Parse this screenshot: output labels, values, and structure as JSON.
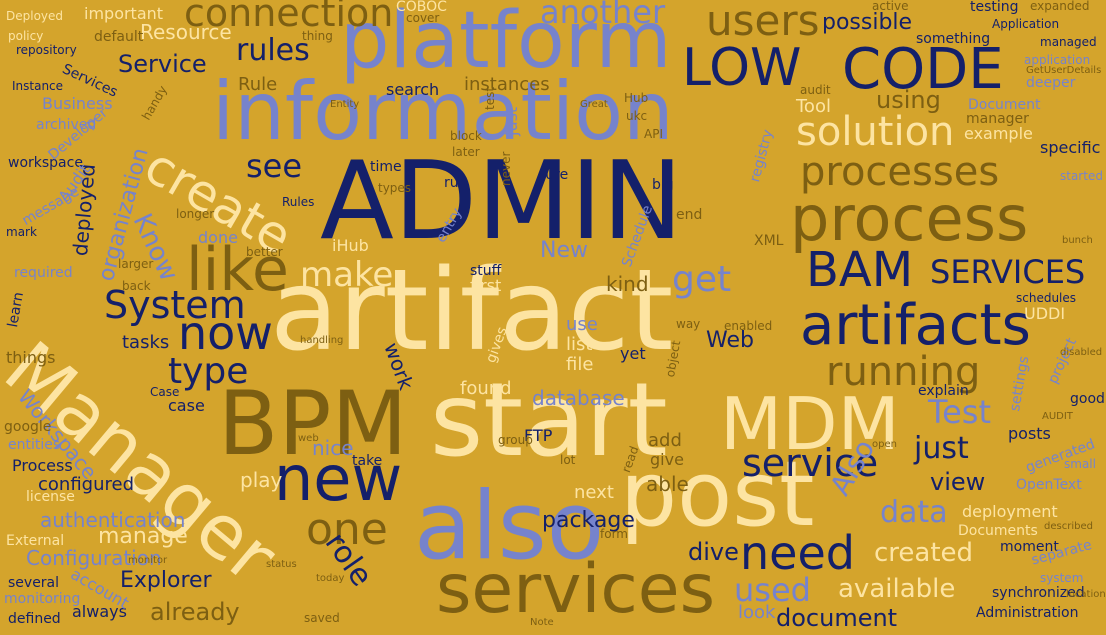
{
  "palette": {
    "background": "#d4a42c",
    "navy": "#14206a",
    "periwinkle": "#7683cc",
    "cream": "#fde4a2",
    "olive": "#7d5f12"
  },
  "words": [
    {
      "text": "artifact",
      "color": "cream"
    },
    {
      "text": "ADMIN",
      "color": "navy"
    },
    {
      "text": "information",
      "color": "periwinkle"
    },
    {
      "text": "platform",
      "color": "periwinkle"
    },
    {
      "text": "Manager",
      "color": "cream"
    },
    {
      "text": "start",
      "color": "cream"
    },
    {
      "text": "BPM",
      "color": "olive"
    },
    {
      "text": "also",
      "color": "periwinkle"
    },
    {
      "text": "post",
      "color": "cream"
    },
    {
      "text": "services",
      "color": "olive"
    },
    {
      "text": "process",
      "color": "olive"
    },
    {
      "text": "MDM",
      "color": "cream"
    },
    {
      "text": "new",
      "color": "navy"
    },
    {
      "text": "artifacts",
      "color": "navy"
    },
    {
      "text": "LOW",
      "color": "navy"
    },
    {
      "text": "CODE",
      "color": "navy"
    },
    {
      "text": "like",
      "color": "olive"
    },
    {
      "text": "create",
      "color": "cream"
    },
    {
      "text": "BAM",
      "color": "navy"
    },
    {
      "text": "processes",
      "color": "olive"
    },
    {
      "text": "users",
      "color": "olive"
    },
    {
      "text": "solution",
      "color": "cream"
    },
    {
      "text": "need",
      "color": "navy"
    },
    {
      "text": "service",
      "color": "navy"
    },
    {
      "text": "one",
      "color": "olive"
    },
    {
      "text": "now",
      "color": "navy"
    },
    {
      "text": "running",
      "color": "olive"
    },
    {
      "text": "connection",
      "color": "olive"
    },
    {
      "text": "another",
      "color": "periwinkle"
    },
    {
      "text": "SERVICES",
      "color": "navy"
    },
    {
      "text": "System",
      "color": "navy"
    },
    {
      "text": "type",
      "color": "navy"
    },
    {
      "text": "make",
      "color": "cream"
    },
    {
      "text": "get",
      "color": "periwinkle"
    },
    {
      "text": "rules",
      "color": "navy"
    },
    {
      "text": "Service",
      "color": "navy"
    },
    {
      "text": "see",
      "color": "navy"
    },
    {
      "text": "Know",
      "color": "periwinkle"
    },
    {
      "text": "Test",
      "color": "periwinkle"
    },
    {
      "text": "just",
      "color": "navy"
    },
    {
      "text": "Also",
      "color": "periwinkle"
    },
    {
      "text": "used",
      "color": "periwinkle"
    },
    {
      "text": "data",
      "color": "periwinkle"
    },
    {
      "text": "role",
      "color": "navy"
    },
    {
      "text": "view",
      "color": "navy"
    },
    {
      "text": "available",
      "color": "cream"
    },
    {
      "text": "created",
      "color": "cream"
    },
    {
      "text": "document",
      "color": "navy"
    },
    {
      "text": "possible",
      "color": "navy"
    },
    {
      "text": "using",
      "color": "olive"
    },
    {
      "text": "Resource",
      "color": "cream"
    },
    {
      "text": "instances",
      "color": "olive"
    },
    {
      "text": "database",
      "color": "periwinkle"
    },
    {
      "text": "package",
      "color": "navy"
    },
    {
      "text": "dive",
      "color": "navy"
    },
    {
      "text": "already",
      "color": "olive"
    },
    {
      "text": "Explorer",
      "color": "navy"
    },
    {
      "text": "manage",
      "color": "cream"
    },
    {
      "text": "Configuration",
      "color": "periwinkle"
    },
    {
      "text": "authentication",
      "color": "periwinkle"
    },
    {
      "text": "organization",
      "color": "periwinkle"
    },
    {
      "text": "Workspace",
      "color": "periwinkle"
    },
    {
      "text": "deployed",
      "color": "navy"
    },
    {
      "text": "tasks",
      "color": "navy"
    },
    {
      "text": "Web",
      "color": "navy"
    },
    {
      "text": "work",
      "color": "navy"
    },
    {
      "text": "New",
      "color": "periwinkle"
    },
    {
      "text": "kind",
      "color": "olive"
    },
    {
      "text": "found",
      "color": "cream"
    },
    {
      "text": "nice",
      "color": "periwinkle"
    },
    {
      "text": "play",
      "color": "cream"
    },
    {
      "text": "able",
      "color": "olive"
    },
    {
      "text": "next",
      "color": "cream"
    },
    {
      "text": "add",
      "color": "olive"
    },
    {
      "text": "give",
      "color": "olive"
    },
    {
      "text": "case",
      "color": "navy"
    },
    {
      "text": "search",
      "color": "navy"
    },
    {
      "text": "Tool",
      "color": "cream"
    },
    {
      "text": "Rule",
      "color": "olive"
    },
    {
      "text": "example",
      "color": "cream"
    },
    {
      "text": "posts",
      "color": "navy"
    },
    {
      "text": "deployment",
      "color": "cream"
    },
    {
      "text": "Documents",
      "color": "cream"
    },
    {
      "text": "moment",
      "color": "navy"
    },
    {
      "text": "synchronized",
      "color": "navy"
    },
    {
      "text": "Administration",
      "color": "navy"
    },
    {
      "text": "look",
      "color": "periwinkle"
    },
    {
      "text": "always",
      "color": "navy"
    },
    {
      "text": "defined",
      "color": "navy"
    },
    {
      "text": "account",
      "color": "periwinkle"
    },
    {
      "text": "several",
      "color": "navy"
    },
    {
      "text": "External",
      "color": "cream"
    },
    {
      "text": "license",
      "color": "cream"
    },
    {
      "text": "configured",
      "color": "navy"
    },
    {
      "text": "Process",
      "color": "navy"
    },
    {
      "text": "entities",
      "color": "periwinkle"
    },
    {
      "text": "google",
      "color": "olive"
    },
    {
      "text": "things",
      "color": "olive"
    },
    {
      "text": "learn",
      "color": "navy"
    },
    {
      "text": "required",
      "color": "periwinkle"
    },
    {
      "text": "mark",
      "color": "navy"
    },
    {
      "text": "workspace",
      "color": "navy"
    },
    {
      "text": "message",
      "color": "periwinkle"
    },
    {
      "text": "archived",
      "color": "periwinkle"
    },
    {
      "text": "Developer",
      "color": "periwinkle"
    },
    {
      "text": "Audit",
      "color": "periwinkle"
    },
    {
      "text": "Instance",
      "color": "navy"
    },
    {
      "text": "repository",
      "color": "navy"
    },
    {
      "text": "policy",
      "color": "cream"
    },
    {
      "text": "Deployed",
      "color": "cream"
    },
    {
      "text": "important",
      "color": "cream"
    },
    {
      "text": "default",
      "color": "olive"
    },
    {
      "text": "COBOC",
      "color": "cream"
    },
    {
      "text": "cover",
      "color": "olive"
    },
    {
      "text": "testing",
      "color": "navy"
    },
    {
      "text": "Application",
      "color": "navy"
    },
    {
      "text": "managed",
      "color": "navy"
    },
    {
      "text": "something",
      "color": "navy"
    },
    {
      "text": "application",
      "color": "periwinkle"
    },
    {
      "text": "deeper",
      "color": "periwinkle"
    },
    {
      "text": "Document",
      "color": "periwinkle"
    },
    {
      "text": "manager",
      "color": "olive"
    },
    {
      "text": "specific",
      "color": "navy"
    },
    {
      "text": "started",
      "color": "periwinkle"
    },
    {
      "text": "UDDI",
      "color": "cream"
    },
    {
      "text": "schedules",
      "color": "navy"
    },
    {
      "text": "project",
      "color": "periwinkle"
    },
    {
      "text": "settings",
      "color": "periwinkle"
    },
    {
      "text": "explain",
      "color": "navy"
    },
    {
      "text": "good",
      "color": "navy"
    },
    {
      "text": "generated",
      "color": "periwinkle"
    },
    {
      "text": "OpenText",
      "color": "periwinkle"
    },
    {
      "text": "separate",
      "color": "periwinkle"
    },
    {
      "text": "system",
      "color": "periwinkle"
    },
    {
      "text": "small",
      "color": "periwinkle"
    },
    {
      "text": "Case",
      "color": "navy"
    },
    {
      "text": "list",
      "color": "cream"
    },
    {
      "text": "file",
      "color": "cream"
    },
    {
      "text": "yet",
      "color": "navy"
    },
    {
      "text": "use",
      "color": "periwinkle"
    },
    {
      "text": "first",
      "color": "cream"
    },
    {
      "text": "FTP",
      "color": "navy"
    },
    {
      "text": "iHub",
      "color": "cream"
    },
    {
      "text": "done",
      "color": "periwinkle"
    },
    {
      "text": "run",
      "color": "navy"
    },
    {
      "text": "time",
      "color": "navy"
    },
    {
      "text": "just",
      "color": "periwinkle"
    },
    {
      "text": "sure",
      "color": "navy"
    },
    {
      "text": "big",
      "color": "navy"
    },
    {
      "text": "stuff",
      "color": "navy"
    },
    {
      "text": "entry",
      "color": "periwinkle"
    },
    {
      "text": "Schedule",
      "color": "periwinkle"
    },
    {
      "text": "registry",
      "color": "periwinkle"
    },
    {
      "text": "XML",
      "color": "olive"
    },
    {
      "text": "gives",
      "color": "cream"
    },
    {
      "text": "take",
      "color": "navy"
    },
    {
      "text": "thing",
      "color": "olive"
    },
    {
      "text": "Business",
      "color": "periwinkle"
    },
    {
      "text": "Services",
      "color": "navy"
    },
    {
      "text": "Rules",
      "color": "navy"
    },
    {
      "text": "end",
      "color": "olive"
    },
    {
      "text": "longer",
      "color": "olive"
    },
    {
      "text": "back",
      "color": "olive"
    },
    {
      "text": "larger",
      "color": "olive"
    },
    {
      "text": "better",
      "color": "olive"
    },
    {
      "text": "Hub",
      "color": "olive"
    },
    {
      "text": "ukc",
      "color": "olive"
    },
    {
      "text": "API",
      "color": "olive"
    },
    {
      "text": "Entity",
      "color": "olive"
    },
    {
      "text": "types",
      "color": "olive"
    },
    {
      "text": "block",
      "color": "olive"
    },
    {
      "text": "later",
      "color": "olive"
    },
    {
      "text": "test",
      "color": "olive"
    },
    {
      "text": "never",
      "color": "olive"
    },
    {
      "text": "enabled",
      "color": "olive"
    },
    {
      "text": "object",
      "color": "olive"
    },
    {
      "text": "way",
      "color": "olive"
    },
    {
      "text": "audit",
      "color": "olive"
    },
    {
      "text": "active",
      "color": "olive"
    },
    {
      "text": "expanded",
      "color": "olive"
    },
    {
      "text": "GetUserDetails",
      "color": "olive"
    },
    {
      "text": "AUDIT",
      "color": "olive"
    },
    {
      "text": "disabled",
      "color": "olive"
    },
    {
      "text": "described",
      "color": "olive"
    },
    {
      "text": "location",
      "color": "olive"
    },
    {
      "text": "monitor",
      "color": "olive"
    },
    {
      "text": "status",
      "color": "olive"
    },
    {
      "text": "today",
      "color": "olive"
    },
    {
      "text": "saved",
      "color": "olive"
    },
    {
      "text": "Note",
      "color": "olive"
    },
    {
      "text": "group",
      "color": "olive"
    },
    {
      "text": "lot",
      "color": "olive"
    },
    {
      "text": "web",
      "color": "olive"
    },
    {
      "text": "read",
      "color": "olive"
    },
    {
      "text": "form",
      "color": "olive"
    },
    {
      "text": "open",
      "color": "olive"
    },
    {
      "text": "monitoring",
      "color": "periwinkle"
    },
    {
      "text": "bunch",
      "color": "olive"
    },
    {
      "text": "handy",
      "color": "olive"
    },
    {
      "text": "Great",
      "color": "olive"
    },
    {
      "text": "handling",
      "color": "olive"
    }
  ]
}
